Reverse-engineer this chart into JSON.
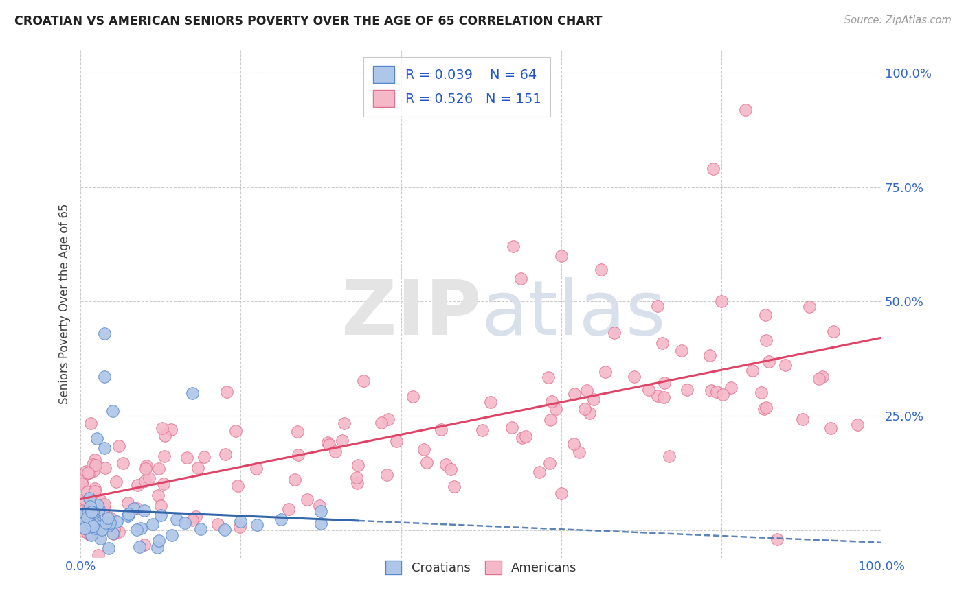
{
  "title": "CROATIAN VS AMERICAN SENIORS POVERTY OVER THE AGE OF 65 CORRELATION CHART",
  "source": "Source: ZipAtlas.com",
  "ylabel": "Seniors Poverty Over the Age of 65",
  "xlim": [
    0,
    1
  ],
  "ylim": [
    -0.06,
    1.05
  ],
  "x_tick_labels": [
    "0.0%",
    "",
    "",
    "",
    "",
    "100.0%"
  ],
  "y_tick_labels": [
    "",
    "25.0%",
    "50.0%",
    "75.0%",
    "100.0%"
  ],
  "croatians_R": 0.039,
  "croatians_N": 64,
  "americans_R": 0.526,
  "americans_N": 151,
  "croatians_color": "#aec6e8",
  "croatians_edge_color": "#5588cc",
  "americans_color": "#f5b8c8",
  "americans_edge_color": "#e07090",
  "trend_croatians_color": "#3366aa",
  "trend_americans_color": "#dd4466",
  "background_color": "#ffffff",
  "grid_color": "#cccccc",
  "title_color": "#222222",
  "source_color": "#999999",
  "legend_text_color": "#2255cc",
  "watermark_zip_color": "#e0e0e0",
  "watermark_atlas_color": "#d0d8e8"
}
